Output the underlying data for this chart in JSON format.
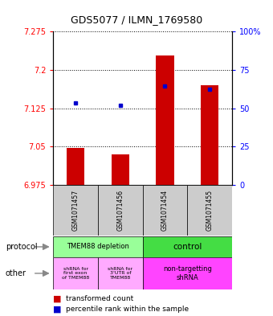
{
  "title": "GDS5077 / ILMN_1769580",
  "samples": [
    "GSM1071457",
    "GSM1071456",
    "GSM1071454",
    "GSM1071455"
  ],
  "bar_base": 6.975,
  "bar_tops": [
    7.047,
    7.035,
    7.228,
    7.17
  ],
  "percentile_values": [
    7.135,
    7.13,
    7.168,
    7.162
  ],
  "ylim_min": 6.975,
  "ylim_max": 7.275,
  "yticks_left": [
    6.975,
    7.05,
    7.125,
    7.2,
    7.275
  ],
  "yticks_right": [
    0,
    25,
    50,
    75,
    100
  ],
  "bar_color": "#cc0000",
  "percentile_color": "#0000cc",
  "prot_color1": "#99ff99",
  "prot_color2": "#44dd44",
  "other_color1": "#ffaaff",
  "other_color2": "#ff44ff",
  "sample_bg": "#cccccc",
  "background_color": "#ffffff"
}
